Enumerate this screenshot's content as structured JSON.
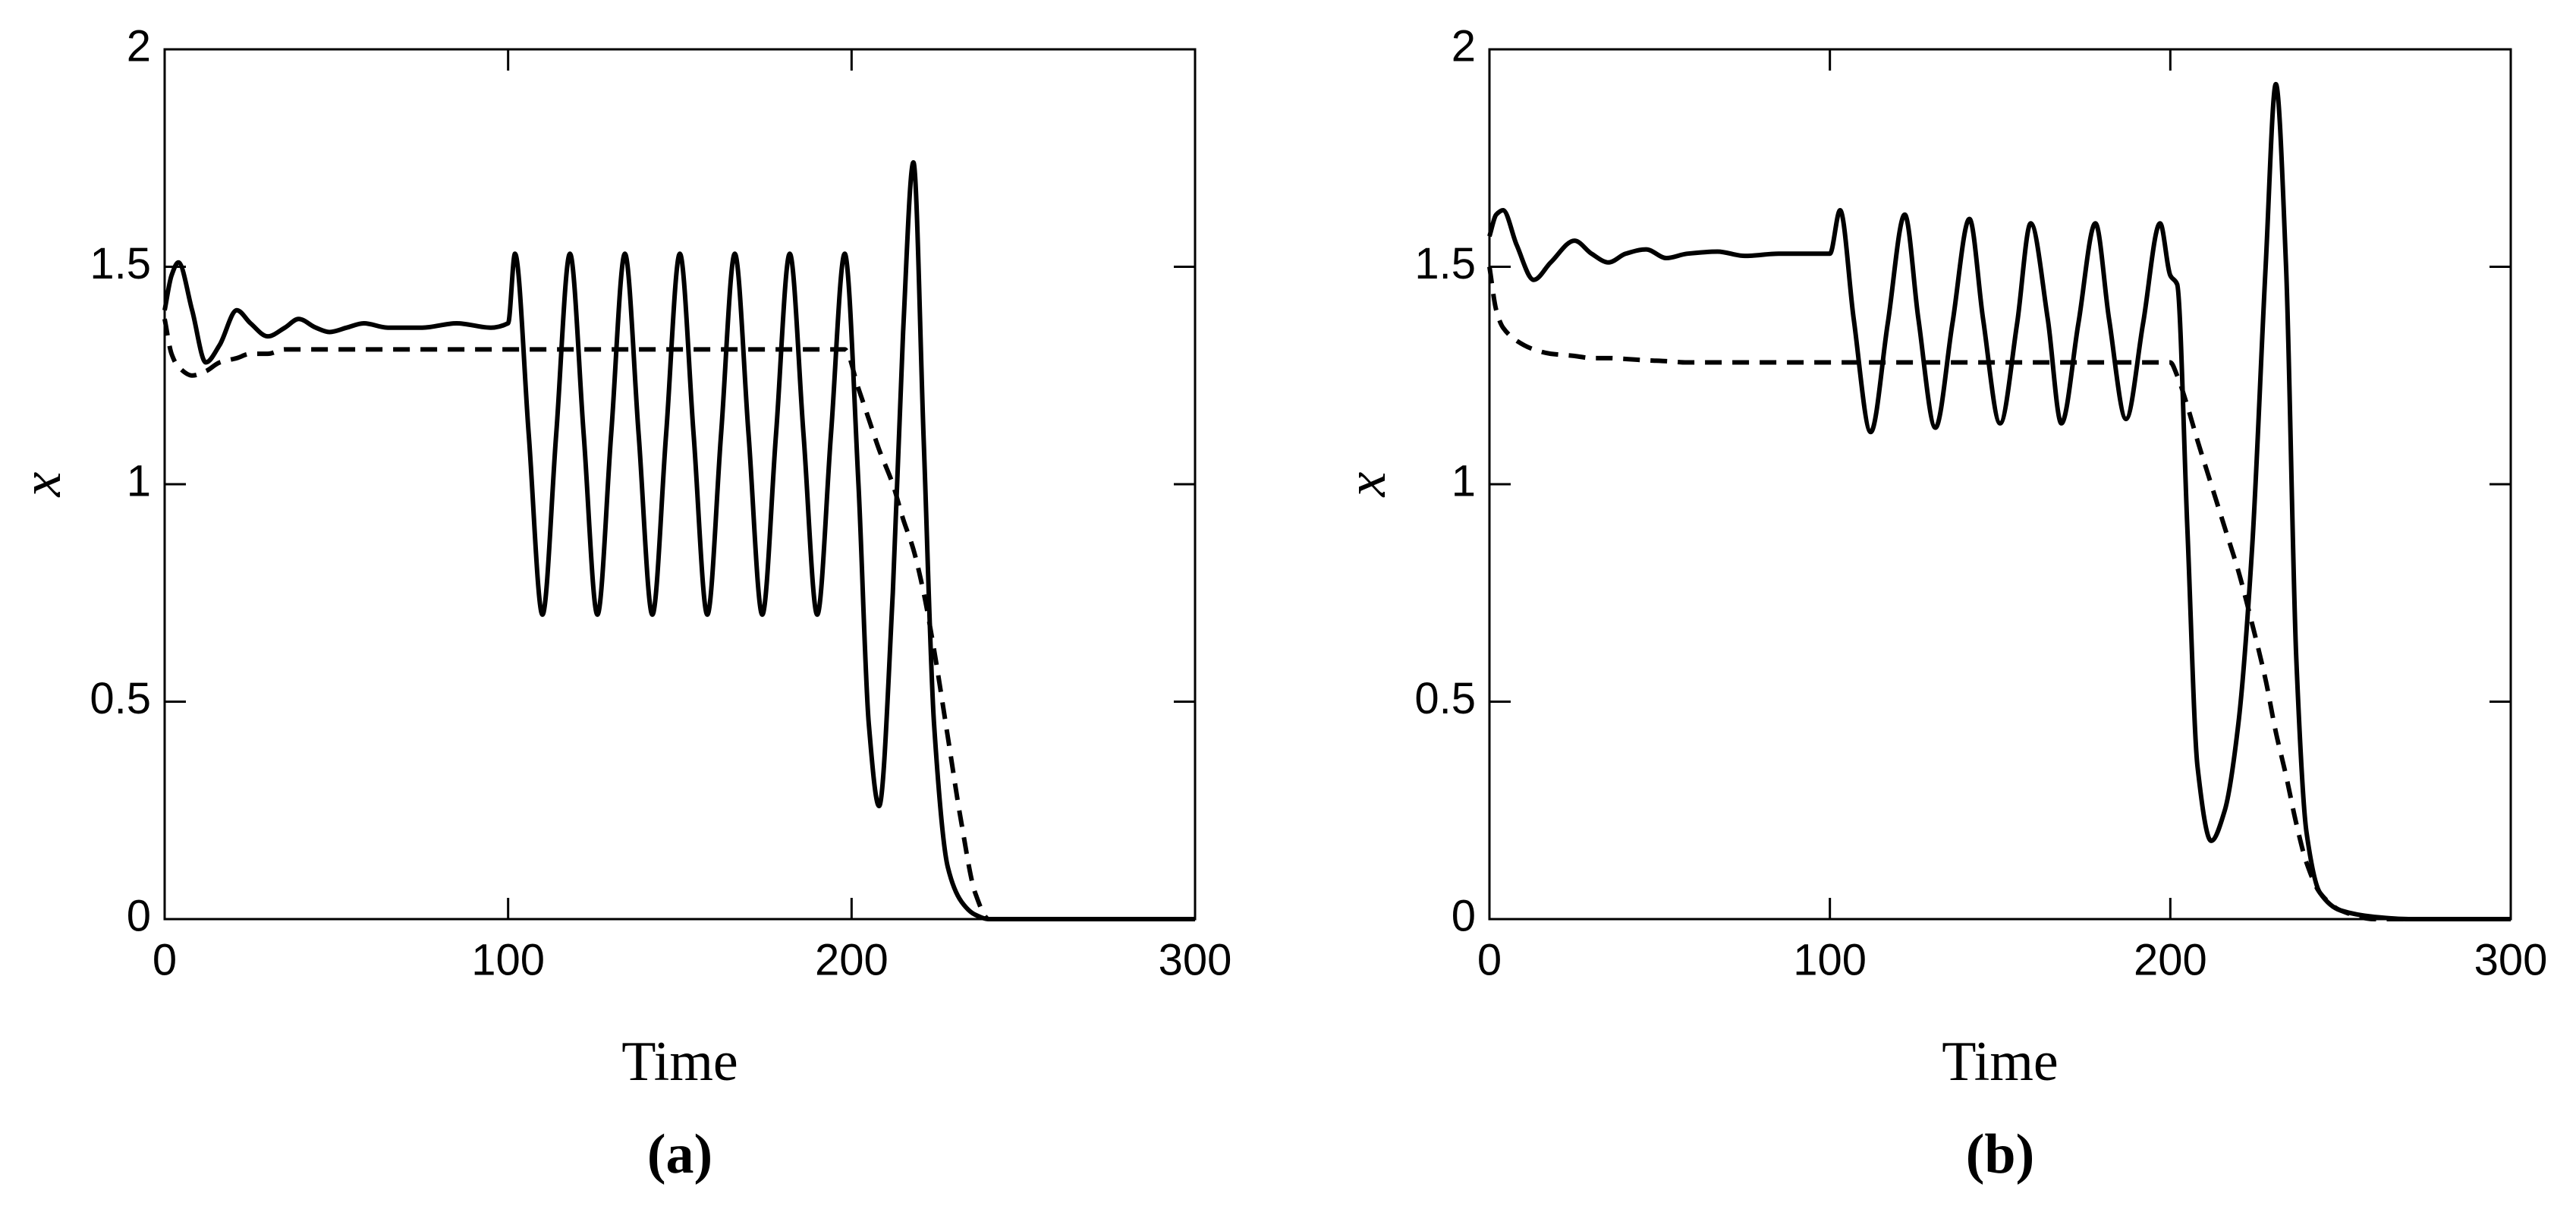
{
  "chart_data": [
    {
      "type": "line",
      "panel_label": "(a)",
      "xlabel": "Time",
      "ylabel": "x",
      "xlim": [
        0,
        300
      ],
      "ylim": [
        0,
        2
      ],
      "xticks": [
        0,
        100,
        200,
        300
      ],
      "yticks": [
        0,
        0.5,
        1,
        1.5,
        2
      ],
      "x": [
        0,
        2,
        4,
        8,
        12,
        16,
        21,
        25,
        30,
        35,
        39,
        44,
        48,
        53,
        58,
        65,
        75,
        85,
        95,
        100,
        102,
        106,
        110,
        114,
        118,
        122,
        126,
        130,
        134,
        138,
        142,
        146,
        150,
        154,
        158,
        162,
        166,
        170,
        174,
        178,
        182,
        186,
        190,
        194,
        198,
        202,
        205,
        208,
        212,
        215,
        218,
        221,
        224,
        228,
        232,
        236,
        240,
        250,
        270,
        300
      ],
      "series": [
        {
          "color": "#000000",
          "linestyle": "solid",
          "values": [
            1.4,
            1.48,
            1.51,
            1.4,
            1.28,
            1.32,
            1.4,
            1.37,
            1.34,
            1.36,
            1.38,
            1.36,
            1.35,
            1.36,
            1.37,
            1.36,
            1.36,
            1.37,
            1.36,
            1.37,
            1.53,
            1.115,
            0.7,
            1.115,
            1.53,
            1.115,
            0.7,
            1.115,
            1.53,
            1.115,
            0.7,
            1.115,
            1.53,
            1.115,
            0.7,
            1.115,
            1.53,
            1.115,
            0.7,
            1.115,
            1.53,
            1.115,
            0.7,
            1.115,
            1.53,
            1.0,
            0.45,
            0.26,
            0.75,
            1.35,
            1.74,
            1.1,
            0.45,
            0.12,
            0.04,
            0.01,
            0,
            0,
            0,
            0
          ]
        },
        {
          "color": "#000000",
          "linestyle": "dashed",
          "values": [
            1.38,
            1.3,
            1.27,
            1.25,
            1.26,
            1.28,
            1.29,
            1.3,
            1.3,
            1.31,
            1.31,
            1.31,
            1.31,
            1.31,
            1.31,
            1.31,
            1.31,
            1.31,
            1.31,
            1.31,
            1.31,
            1.31,
            1.31,
            1.31,
            1.31,
            1.31,
            1.31,
            1.31,
            1.31,
            1.31,
            1.31,
            1.31,
            1.31,
            1.31,
            1.31,
            1.31,
            1.31,
            1.31,
            1.31,
            1.31,
            1.31,
            1.31,
            1.31,
            1.31,
            1.31,
            1.22,
            1.15,
            1.08,
            1.0,
            0.92,
            0.85,
            0.75,
            0.62,
            0.42,
            0.22,
            0.06,
            0,
            0,
            0,
            0
          ]
        }
      ]
    },
    {
      "type": "line",
      "panel_label": "(b)",
      "xlabel": "Time",
      "ylabel": "x",
      "xlim": [
        0,
        300
      ],
      "ylim": [
        0,
        2
      ],
      "xticks": [
        0,
        100,
        200,
        300
      ],
      "yticks": [
        0,
        0.5,
        1,
        1.5,
        2
      ],
      "x": [
        0,
        2,
        4,
        8,
        13,
        18,
        25,
        30,
        35,
        40,
        46,
        52,
        58,
        67,
        75,
        85,
        95,
        100,
        103,
        107,
        112,
        117,
        122,
        126,
        131,
        136,
        141,
        145,
        150,
        155,
        159,
        164,
        168,
        173,
        178,
        182,
        187,
        192,
        197,
        200,
        202,
        205,
        208,
        212,
        216,
        220,
        224,
        228,
        231,
        234,
        237,
        240,
        244,
        250,
        260,
        270,
        300
      ],
      "series": [
        {
          "color": "#000000",
          "linestyle": "solid",
          "values": [
            1.57,
            1.62,
            1.63,
            1.55,
            1.47,
            1.51,
            1.56,
            1.53,
            1.51,
            1.53,
            1.54,
            1.52,
            1.53,
            1.535,
            1.525,
            1.53,
            1.53,
            1.53,
            1.63,
            1.38,
            1.12,
            1.37,
            1.62,
            1.38,
            1.13,
            1.37,
            1.61,
            1.38,
            1.14,
            1.37,
            1.6,
            1.38,
            1.14,
            1.37,
            1.6,
            1.38,
            1.15,
            1.37,
            1.6,
            1.48,
            1.46,
            0.9,
            0.35,
            0.18,
            0.25,
            0.45,
            0.85,
            1.5,
            1.92,
            1.5,
            0.6,
            0.2,
            0.06,
            0.02,
            0.005,
            0,
            0
          ]
        },
        {
          "color": "#000000",
          "linestyle": "dashed",
          "values": [
            1.5,
            1.4,
            1.36,
            1.33,
            1.31,
            1.3,
            1.295,
            1.29,
            1.29,
            1.288,
            1.285,
            1.283,
            1.28,
            1.28,
            1.28,
            1.28,
            1.28,
            1.28,
            1.28,
            1.28,
            1.28,
            1.28,
            1.28,
            1.28,
            1.28,
            1.28,
            1.28,
            1.28,
            1.28,
            1.28,
            1.28,
            1.28,
            1.28,
            1.28,
            1.28,
            1.28,
            1.28,
            1.28,
            1.28,
            1.28,
            1.25,
            1.18,
            1.1,
            1.0,
            0.9,
            0.8,
            0.68,
            0.55,
            0.43,
            0.33,
            0.22,
            0.13,
            0.06,
            0.02,
            0,
            0,
            0
          ]
        }
      ]
    }
  ]
}
